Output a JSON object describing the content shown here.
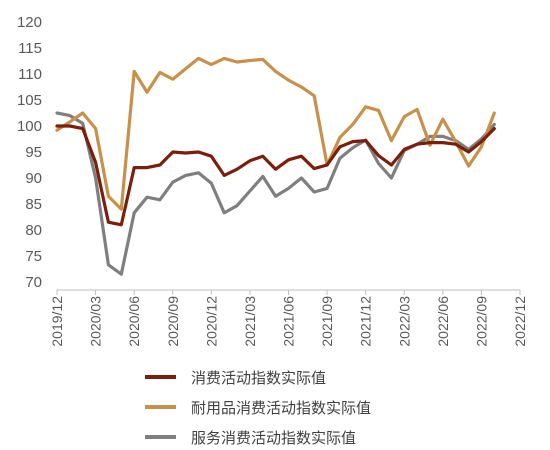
{
  "chart_data": {
    "type": "line",
    "title": "",
    "xlabel": "",
    "ylabel": "",
    "ylim": [
      70,
      120
    ],
    "yticks": [
      70,
      75,
      80,
      85,
      90,
      95,
      100,
      105,
      110,
      115,
      120
    ],
    "xticks": [
      "2019/12",
      "2020/03",
      "2020/06",
      "2020/09",
      "2020/12",
      "2021/03",
      "2021/06",
      "2021/09",
      "2021/12",
      "2022/03",
      "2022/06",
      "2022/09",
      "2022/12"
    ],
    "x": [
      "2019/12",
      "2020/01",
      "2020/02",
      "2020/03",
      "2020/04",
      "2020/05",
      "2020/06",
      "2020/07",
      "2020/08",
      "2020/09",
      "2020/10",
      "2020/11",
      "2020/12",
      "2021/01",
      "2021/02",
      "2021/03",
      "2021/04",
      "2021/05",
      "2021/06",
      "2021/07",
      "2021/08",
      "2021/09",
      "2021/10",
      "2021/11",
      "2021/12",
      "2022/01",
      "2022/02",
      "2022/03",
      "2022/04",
      "2022/05",
      "2022/06",
      "2022/07",
      "2022/08",
      "2022/09",
      "2022/10"
    ],
    "grid": false,
    "legend_position": "bottom",
    "series": [
      {
        "name": "消费活动指数实际值",
        "color": "#7B1E0A",
        "values": [
          100,
          100,
          99.5,
          93,
          81.5,
          81,
          92,
          92,
          92.5,
          95,
          94.8,
          95,
          94.2,
          90.5,
          91.7,
          93.3,
          94.2,
          91.7,
          93.5,
          94.2,
          91.8,
          92.5,
          96,
          97,
          97.2,
          94.3,
          92.5,
          95.5,
          96.5,
          96.8,
          96.8,
          96.5,
          95,
          97,
          99.5
        ]
      },
      {
        "name": "耐用品消费活动指数实际值",
        "color": "#C8914A",
        "values": [
          99.2,
          100.8,
          102.5,
          99.5,
          86.5,
          84,
          110.5,
          106.5,
          110.3,
          109,
          111,
          113,
          111.8,
          113,
          112.3,
          112.6,
          112.8,
          110.5,
          108.8,
          107.5,
          105.8,
          92.5,
          97.8,
          100.3,
          103.7,
          103,
          97.2,
          101.8,
          103.2,
          96.3,
          101.3,
          97,
          92.3,
          96,
          102.5
        ]
      },
      {
        "name": "服务消费活动指数实际值",
        "color": "#7F7F7F",
        "values": [
          102.5,
          102,
          100.5,
          90,
          73.3,
          71.5,
          83.3,
          86.3,
          85.8,
          89.2,
          90.5,
          91,
          89,
          83.3,
          84.7,
          87.5,
          90.3,
          86.5,
          88,
          90,
          87.3,
          88,
          93.8,
          95.8,
          97.3,
          92.8,
          90,
          95.3,
          96.5,
          98,
          98,
          97.2,
          95.5,
          97.5,
          100.3
        ]
      }
    ]
  }
}
